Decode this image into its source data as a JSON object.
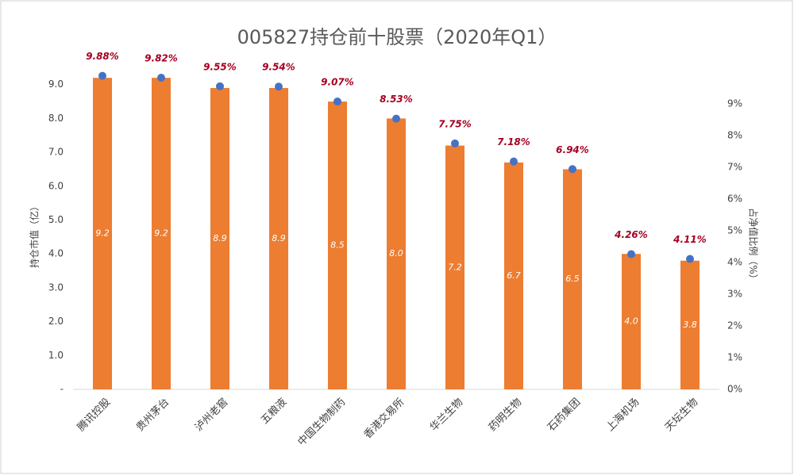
{
  "chart_data": {
    "type": "bar",
    "title": "005827持仓前十股票（2020年Q1）",
    "y_label": "持仓市值（亿）",
    "y2_label": "占净值比例（%）",
    "categories": [
      "腾讯控股",
      "贵州茅台",
      "泸州老窖",
      "五粮液",
      "中国生物制药",
      "香港交易所",
      "华兰生物",
      "药明生物",
      "石药集团",
      "上海机场",
      "天坛生物"
    ],
    "series": [
      {
        "type": "bar",
        "color": "#ed7d31",
        "values": [
          9.2,
          9.2,
          8.9,
          8.9,
          8.5,
          8.0,
          7.2,
          6.7,
          6.5,
          4.0,
          3.8
        ],
        "value_labels": [
          "9.2",
          "9.2",
          "8.9",
          "8.9",
          "8.5",
          "8.0",
          "7.2",
          "6.7",
          "6.5",
          "4.0",
          "3.8"
        ]
      },
      {
        "type": "scatter",
        "axis": "y2",
        "color": "#4472c4",
        "values": [
          9.88,
          9.82,
          9.55,
          9.54,
          9.07,
          8.53,
          7.75,
          7.18,
          6.94,
          4.26,
          4.11
        ],
        "value_labels": [
          "9.88%",
          "9.82%",
          "9.55%",
          "9.54%",
          "9.07%",
          "8.53%",
          "7.75%",
          "7.18%",
          "6.94%",
          "4.26%",
          "4.11%"
        ]
      }
    ],
    "ylim": [
      0,
      10
    ],
    "yticks": [
      {
        "value": 0,
        "label": "-"
      },
      {
        "value": 1,
        "label": "1.0"
      },
      {
        "value": 2,
        "label": "2.0"
      },
      {
        "value": 3,
        "label": "3.0"
      },
      {
        "value": 4,
        "label": "4.0"
      },
      {
        "value": 5,
        "label": "5.0"
      },
      {
        "value": 6,
        "label": "6.0"
      },
      {
        "value": 7,
        "label": "7.0"
      },
      {
        "value": 8,
        "label": "8.0"
      },
      {
        "value": 9,
        "label": "9.0"
      }
    ],
    "y2lim": [
      0,
      10.67
    ],
    "y2ticks": [
      {
        "value": 0,
        "label": "0%"
      },
      {
        "value": 1,
        "label": "1%"
      },
      {
        "value": 2,
        "label": "2%"
      },
      {
        "value": 3,
        "label": "3%"
      },
      {
        "value": 4,
        "label": "4%"
      },
      {
        "value": 5,
        "label": "5%"
      },
      {
        "value": 6,
        "label": "6%"
      },
      {
        "value": 7,
        "label": "7%"
      },
      {
        "value": 8,
        "label": "8%"
      },
      {
        "value": 9,
        "label": "9%"
      }
    ]
  }
}
